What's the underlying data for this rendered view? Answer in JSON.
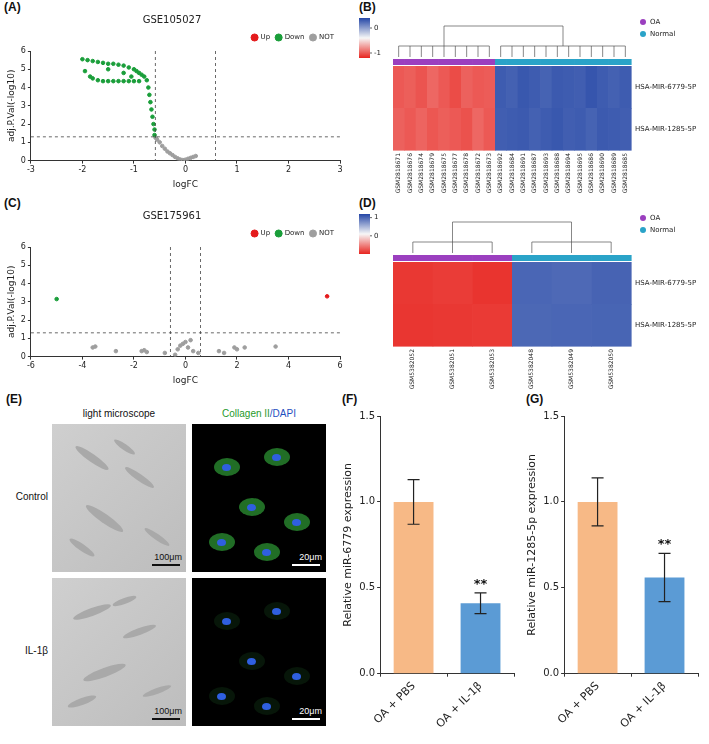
{
  "chart_data": [
    {
      "panel": "(A)",
      "type": "scatter",
      "title": "GSE105027",
      "x_label": "logFC",
      "y_label": "adj.P.Val(-log10)",
      "series": [
        {
          "name": "Up",
          "color": "#e41a1c",
          "x": [],
          "values": []
        },
        {
          "name": "Down",
          "color": "#1a9e3a",
          "x": [
            -2.0,
            -1.95,
            -1.9,
            -1.85,
            -1.8,
            -1.7,
            -1.6,
            -1.5,
            -1.5,
            -1.4,
            -1.3,
            -1.2,
            -1.2,
            -1.1,
            -1.05,
            -1.0,
            -0.95,
            -0.9,
            -0.85,
            -0.8,
            -0.75,
            -1.8,
            -1.7,
            -1.6,
            -1.5,
            -1.4,
            -1.3,
            -1.2,
            -1.1,
            -1.0,
            -0.9,
            -0.72,
            -0.7,
            -0.68,
            -0.66,
            -0.64,
            -0.62,
            -0.6,
            -0.6
          ],
          "values": [
            5.55,
            4.9,
            5.5,
            4.6,
            5.45,
            5.4,
            5.35,
            5.3,
            5.0,
            5.3,
            5.25,
            5.2,
            4.8,
            5.1,
            4.6,
            5.0,
            4.9,
            4.8,
            4.7,
            4.6,
            4.4,
            4.5,
            4.4,
            4.35,
            4.35,
            4.35,
            4.35,
            4.35,
            4.35,
            4.35,
            4.35,
            4.0,
            3.6,
            3.2,
            2.8,
            2.4,
            2.0,
            1.7,
            1.4
          ]
        },
        {
          "name": "NOT",
          "color": "#9e9e9e",
          "x": [
            -0.58,
            -0.55,
            -0.5,
            -0.45,
            -0.4,
            -0.35,
            -0.3,
            -0.25,
            -0.2,
            -0.15,
            -0.1,
            -0.05,
            0.0,
            0.05,
            0.1,
            0.15,
            0.2
          ],
          "values": [
            1.25,
            1.15,
            1.0,
            0.8,
            0.65,
            0.5,
            0.4,
            0.3,
            0.2,
            0.12,
            0.06,
            0.03,
            0.05,
            0.1,
            0.15,
            0.2,
            0.25
          ]
        }
      ],
      "xlim": [
        -3,
        3
      ],
      "xticks": [
        -3,
        -2,
        -1,
        0,
        1,
        2,
        3
      ],
      "ylim": [
        0,
        6
      ],
      "yticks": [
        0,
        1,
        2,
        3,
        4,
        5,
        6
      ],
      "reference_lines": {
        "x": [
          -0.585,
          0.585
        ],
        "y": [
          1.3
        ]
      },
      "legend": "top right",
      "grid": false,
      "marker": "circle"
    },
    {
      "panel": "(B)",
      "type": "heatmap",
      "rows": [
        "HSA-MIR-6779-5P",
        "HSA-MIR-1285-5P"
      ],
      "columns": [
        "GSM2818671",
        "GSM2818676",
        "GSM2818674",
        "GSM2818679",
        "GSM2818675",
        "GSM2818677",
        "GSM2818678",
        "GSM2818672",
        "GSM2818673",
        "GSM2818692",
        "GSM2818684",
        "GSM2818691",
        "GSM2818687",
        "GSM2818693",
        "GSM2818688",
        "GSM2818694",
        "GSM2818695",
        "GSM2818686",
        "GSM2818690",
        "GSM2818689",
        "GSM2818685"
      ],
      "groups": [
        "OA",
        "OA",
        "OA",
        "OA",
        "OA",
        "OA",
        "OA",
        "OA",
        "OA",
        "Normal",
        "Normal",
        "Normal",
        "Normal",
        "Normal",
        "Normal",
        "Normal",
        "Normal",
        "Normal",
        "Normal",
        "Normal",
        "Normal"
      ],
      "group_legend": [
        {
          "name": "OA",
          "color": "#9b3fbf"
        },
        {
          "name": "Normal",
          "color": "#2aa3c8"
        }
      ],
      "cells": [
        [
          -1.0,
          -0.98,
          -1.02,
          -0.95,
          -1.0,
          -1.05,
          -0.97,
          -1.0,
          -0.99,
          0.3,
          0.28,
          0.32,
          0.3,
          0.27,
          0.31,
          0.3,
          0.29,
          0.33,
          0.3,
          0.28,
          0.3
        ],
        [
          -0.97,
          -1.0,
          -0.96,
          -1.01,
          -0.98,
          -1.0,
          -1.03,
          -0.95,
          -1.0,
          0.29,
          0.3,
          0.31,
          0.28,
          0.3,
          0.32,
          0.29,
          0.3,
          0.27,
          0.31,
          0.3,
          0.29
        ]
      ],
      "color_range": [
        -1.2,
        0.4
      ],
      "color_ticks": [
        -1,
        0
      ],
      "color_scale": [
        "#e8251f",
        "#f7f7f7",
        "#2446a6"
      ]
    },
    {
      "panel": "(C)",
      "type": "scatter",
      "title": "GSE175961",
      "x_label": "logFC",
      "y_label": "adj.P.Val(-log10)",
      "series": [
        {
          "name": "Up",
          "color": "#e41a1c",
          "x": [
            5.5
          ],
          "values": [
            3.3
          ]
        },
        {
          "name": "Down",
          "color": "#1a9e3a",
          "x": [
            -5.0
          ],
          "values": [
            3.15
          ]
        },
        {
          "name": "NOT",
          "color": "#9e9e9e",
          "x": [
            -3.6,
            -3.5,
            -2.7,
            -1.7,
            -1.6,
            -1.5,
            -0.8,
            -0.4,
            -0.3,
            -0.2,
            -0.1,
            0.0,
            0.1,
            0.2,
            0.3,
            0.5,
            1.3,
            1.5,
            1.9,
            2.0,
            2.3,
            3.5
          ],
          "values": [
            0.5,
            0.55,
            0.3,
            0.3,
            0.35,
            0.25,
            0.2,
            0.1,
            0.4,
            0.6,
            0.7,
            0.8,
            0.5,
            0.9,
            0.3,
            0.2,
            0.3,
            0.2,
            0.5,
            0.4,
            0.5,
            0.55
          ]
        }
      ],
      "xlim": [
        -6,
        6
      ],
      "xticks": [
        -6,
        -4,
        -2,
        0,
        2,
        4,
        6
      ],
      "ylim": [
        0,
        6
      ],
      "yticks": [
        0,
        1,
        2,
        3,
        4,
        5,
        6
      ],
      "reference_lines": {
        "x": [
          -0.585,
          0.585
        ],
        "y": [
          1.3
        ]
      },
      "legend": "top right",
      "grid": false,
      "marker": "circle"
    },
    {
      "panel": "(D)",
      "type": "heatmap",
      "rows": [
        "HSA-MIR-6779-5P",
        "HSA-MIR-1285-5P"
      ],
      "columns": [
        "GSM5382052",
        "GSM5382051",
        "GSM5382053",
        "GSM5382048",
        "GSM5382049",
        "GSM5382050"
      ],
      "groups": [
        "OA",
        "OA",
        "OA",
        "Normal",
        "Normal",
        "Normal"
      ],
      "group_legend": [
        {
          "name": "OA",
          "color": "#9b3fbf"
        },
        {
          "name": "Normal",
          "color": "#2aa3c8"
        }
      ],
      "cells": [
        [
          -0.9,
          -0.88,
          -0.92,
          1.0,
          0.98,
          1.02
        ],
        [
          -0.91,
          -0.9,
          -0.89,
          0.99,
          1.0,
          1.01
        ]
      ],
      "color_range": [
        -1,
        1.2
      ],
      "color_ticks": [
        0,
        1
      ],
      "color_scale": [
        "#e8251f",
        "#f7f7f7",
        "#2446a6"
      ]
    },
    {
      "panel": "(F)",
      "type": "bar",
      "categories": [
        "OA + PBS",
        "OA + IL-1β"
      ],
      "values": [
        1.0,
        0.41
      ],
      "errors": [
        0.13,
        0.06
      ],
      "colors": [
        "#f7b986",
        "#5b9bd5"
      ],
      "y_label": "Relative miR-6779 expression",
      "ylim": [
        0,
        1.5
      ],
      "yticks": [
        {
          "value": 0,
          "label": "0.0"
        },
        {
          "value": 0.5,
          "label": "0.5"
        },
        {
          "value": 1,
          "label": "1.0"
        },
        {
          "value": 1.5,
          "label": "1.5"
        }
      ],
      "annotations": [
        {
          "text": "**",
          "category": "OA + IL-1β"
        }
      ],
      "grid": false
    },
    {
      "panel": "(G)",
      "type": "bar",
      "categories": [
        "OA + PBS",
        "OA + IL-1β"
      ],
      "values": [
        1.0,
        0.56
      ],
      "errors": [
        0.14,
        0.14
      ],
      "colors": [
        "#f7b986",
        "#5b9bd5"
      ],
      "y_label": "Relative miR-1285-5p expression",
      "ylim": [
        0,
        1.5
      ],
      "yticks": [
        {
          "value": 0,
          "label": "0.0"
        },
        {
          "value": 0.5,
          "label": "0.5"
        },
        {
          "value": 1,
          "label": "1.0"
        },
        {
          "value": 1.5,
          "label": "1.5"
        }
      ],
      "annotations": [
        {
          "text": "**",
          "category": "OA + IL-1β"
        }
      ],
      "grid": false
    }
  ],
  "images": {
    "panel": "(E)",
    "column_titles": [
      [
        "light microscope"
      ],
      [
        "Collagen II",
        "/DAPI"
      ]
    ],
    "row_labels": [
      "Control",
      "IL-1β"
    ],
    "scale_bars": [
      "100μm",
      "20μm"
    ]
  }
}
